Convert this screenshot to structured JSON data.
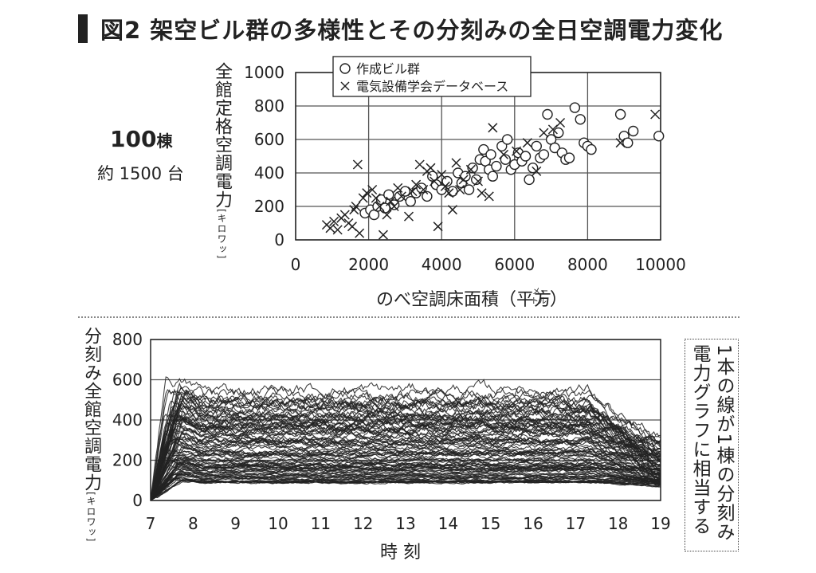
{
  "figure": {
    "title": "図2  架空ビル群の多様性とその分刻みの全日空調電力変化",
    "count_main": "100",
    "count_unit": "棟",
    "count_sub": "約 1500 台",
    "note": "1本の線が1棟の分刻み電力グラフに相当する"
  },
  "colors": {
    "ink": "#222222",
    "grid": "#555555",
    "axis": "#222222"
  },
  "chart_data": [
    {
      "type": "scatter",
      "xlabel": "のべ空調床面積",
      "xlabel_unit": "（平方",
      "xlabel_unit_small_top": "メー",
      "xlabel_unit_small_bottom": "トル",
      "xlabel_unit_close": "）",
      "ylabel": "全館定格空調電力",
      "ylabel_unit": "[キロワッ]",
      "xlim": [
        0,
        10000
      ],
      "ylim": [
        0,
        1000
      ],
      "x_ticks": [
        0,
        2000,
        4000,
        6000,
        8000,
        10000
      ],
      "x_tick_labels": [
        "0",
        "2000",
        "4000",
        "6000",
        "8000",
        "10000"
      ],
      "y_ticks": [
        0,
        200,
        400,
        600,
        800,
        1000
      ],
      "y_tick_labels": [
        "0",
        "200",
        "400",
        "600",
        "800",
        "1000"
      ],
      "grid": true,
      "legend_position": "top-left",
      "series": [
        {
          "name": "作成ビル群",
          "marker": "circle",
          "points": [
            [
              1900,
              160
            ],
            [
              2050,
              180
            ],
            [
              2150,
              150
            ],
            [
              2250,
              200
            ],
            [
              2350,
              240
            ],
            [
              2450,
              190
            ],
            [
              2550,
              270
            ],
            [
              2700,
              210
            ],
            [
              2850,
              260
            ],
            [
              3000,
              290
            ],
            [
              3150,
              230
            ],
            [
              3300,
              280
            ],
            [
              3450,
              310
            ],
            [
              3600,
              260
            ],
            [
              3750,
              380
            ],
            [
              3850,
              330
            ],
            [
              4000,
              300
            ],
            [
              4150,
              350
            ],
            [
              4300,
              290
            ],
            [
              4450,
              400
            ],
            [
              4550,
              340
            ],
            [
              4650,
              380
            ],
            [
              4750,
              300
            ],
            [
              4850,
              430
            ],
            [
              4950,
              360
            ],
            [
              5050,
              480
            ],
            [
              5150,
              540
            ],
            [
              5200,
              470
            ],
            [
              5300,
              420
            ],
            [
              5350,
              510
            ],
            [
              5400,
              380
            ],
            [
              5500,
              440
            ],
            [
              5650,
              560
            ],
            [
              5750,
              480
            ],
            [
              5800,
              600
            ],
            [
              5900,
              420
            ],
            [
              6000,
              450
            ],
            [
              6100,
              520
            ],
            [
              6200,
              470
            ],
            [
              6300,
              500
            ],
            [
              6400,
              360
            ],
            [
              6500,
              430
            ],
            [
              6600,
              560
            ],
            [
              6700,
              490
            ],
            [
              6800,
              510
            ],
            [
              6900,
              750
            ],
            [
              7000,
              600
            ],
            [
              7100,
              550
            ],
            [
              7200,
              640
            ],
            [
              7300,
              520
            ],
            [
              7400,
              480
            ],
            [
              7500,
              490
            ],
            [
              7650,
              790
            ],
            [
              7800,
              720
            ],
            [
              7900,
              580
            ],
            [
              8000,
              560
            ],
            [
              8100,
              540
            ],
            [
              8900,
              750
            ],
            [
              9000,
              620
            ],
            [
              9100,
              580
            ],
            [
              9250,
              650
            ],
            [
              9950,
              620
            ]
          ]
        },
        {
          "name": "電気設備学会データベース",
          "marker": "cross",
          "points": [
            [
              850,
              90
            ],
            [
              950,
              70
            ],
            [
              1050,
              110
            ],
            [
              1150,
              60
            ],
            [
              1250,
              130
            ],
            [
              1350,
              150
            ],
            [
              1450,
              100
            ],
            [
              1550,
              80
            ],
            [
              1650,
              200
            ],
            [
              1750,
              40
            ],
            [
              1850,
              250
            ],
            [
              1950,
              280
            ],
            [
              1600,
              180
            ],
            [
              1700,
              450
            ],
            [
              2100,
              300
            ],
            [
              2200,
              250
            ],
            [
              2300,
              200
            ],
            [
              2400,
              30
            ],
            [
              2500,
              150
            ],
            [
              2600,
              230
            ],
            [
              2700,
              200
            ],
            [
              2800,
              310
            ],
            [
              2900,
              260
            ],
            [
              3100,
              140
            ],
            [
              3200,
              290
            ],
            [
              3300,
              330
            ],
            [
              3400,
              450
            ],
            [
              3500,
              300
            ],
            [
              3600,
              410
            ],
            [
              3700,
              430
            ],
            [
              3800,
              350
            ],
            [
              3900,
              80
            ],
            [
              4000,
              390
            ],
            [
              4100,
              320
            ],
            [
              4200,
              280
            ],
            [
              4300,
              180
            ],
            [
              4400,
              460
            ],
            [
              4500,
              300
            ],
            [
              4600,
              360
            ],
            [
              4800,
              420
            ],
            [
              5000,
              350
            ],
            [
              5100,
              280
            ],
            [
              5300,
              260
            ],
            [
              5400,
              670
            ],
            [
              5700,
              510
            ],
            [
              6050,
              530
            ],
            [
              6350,
              580
            ],
            [
              6600,
              410
            ],
            [
              6800,
              640
            ],
            [
              7050,
              660
            ],
            [
              7250,
              700
            ],
            [
              8900,
              580
            ],
            [
              9850,
              750
            ]
          ]
        }
      ]
    },
    {
      "type": "line",
      "xlabel": "時 刻",
      "ylabel": "分刻み全館空調電力",
      "ylabel_unit": "[キロワッ]",
      "xlim": [
        7,
        19
      ],
      "ylim": [
        0,
        800
      ],
      "x_ticks": [
        7,
        8,
        9,
        10,
        11,
        12,
        13,
        14,
        15,
        16,
        17,
        18,
        19
      ],
      "x_tick_labels": [
        "7",
        "8",
        "9",
        "10",
        "11",
        "12",
        "13",
        "14",
        "15",
        "16",
        "17",
        "18",
        "19"
      ],
      "y_ticks": [
        0,
        200,
        400,
        600,
        800
      ],
      "y_tick_labels": [
        "0",
        "200",
        "400",
        "600",
        "800"
      ],
      "grid": true,
      "series_count": 100,
      "level_range": [
        90,
        560
      ],
      "peak_max": 630,
      "end_range": [
        70,
        320
      ]
    }
  ]
}
